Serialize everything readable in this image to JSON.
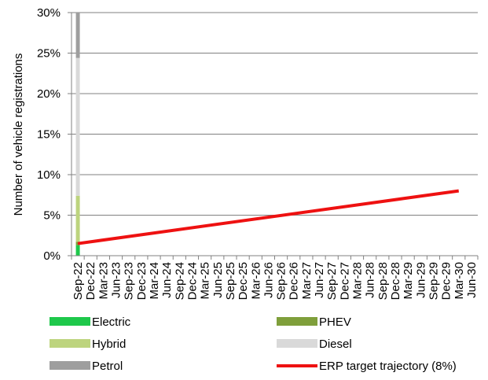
{
  "chart_data": {
    "type": "bar",
    "ylabel": "Number of vehicle registrations",
    "xlabel": "",
    "ylim": [
      0,
      30
    ],
    "yticks": [
      "0%",
      "5%",
      "10%",
      "15%",
      "20%",
      "25%",
      "30%"
    ],
    "ytick_values": [
      0,
      5,
      10,
      15,
      20,
      25,
      30
    ],
    "grid": true,
    "categories": [
      "Sep-22",
      "Dec-22",
      "Mar-23",
      "Jun-23",
      "Sep-23",
      "Dec-23",
      "Mar-24",
      "Jun-24",
      "Sep-24",
      "Dec-24",
      "Mar-25",
      "Jun-25",
      "Sep-25",
      "Dec-25",
      "Mar-26",
      "Jun-26",
      "Sep-26",
      "Dec-26",
      "Mar-27",
      "Jun-27",
      "Sep-27",
      "Dec-27",
      "Mar-28",
      "Jun-28",
      "Sep-28",
      "Dec-28",
      "Mar-29",
      "Jun-29",
      "Sep-29",
      "Dec-29",
      "Mar-30",
      "Jun-30"
    ],
    "stacked_bars": [
      {
        "category": "Sep-22",
        "segments": [
          {
            "series": "Electric",
            "value": 1.3
          },
          {
            "series": "PHEV",
            "value": 0.4
          },
          {
            "series": "Hybrid",
            "value": 5.7
          },
          {
            "series": "Diesel",
            "value": 17.0
          },
          {
            "series": "Petrol",
            "value": 75.6
          }
        ]
      }
    ],
    "series": [
      {
        "name": "Electric",
        "kind": "bar",
        "color": "#1ec84b"
      },
      {
        "name": "PHEV",
        "kind": "bar",
        "color": "#7f9f3b"
      },
      {
        "name": "Hybrid",
        "kind": "bar",
        "color": "#bdd47e"
      },
      {
        "name": "Diesel",
        "kind": "bar",
        "color": "#d9d9d9"
      },
      {
        "name": "Petrol",
        "kind": "bar",
        "color": "#9e9e9e"
      },
      {
        "name": "ERP target trajectory (8%)",
        "kind": "line",
        "color": "#ee1111",
        "points": [
          {
            "x": "Sep-22",
            "y": 1.5
          },
          {
            "x": "Mar-30",
            "y": 8.0
          }
        ]
      }
    ],
    "legend_position": "bottom"
  }
}
